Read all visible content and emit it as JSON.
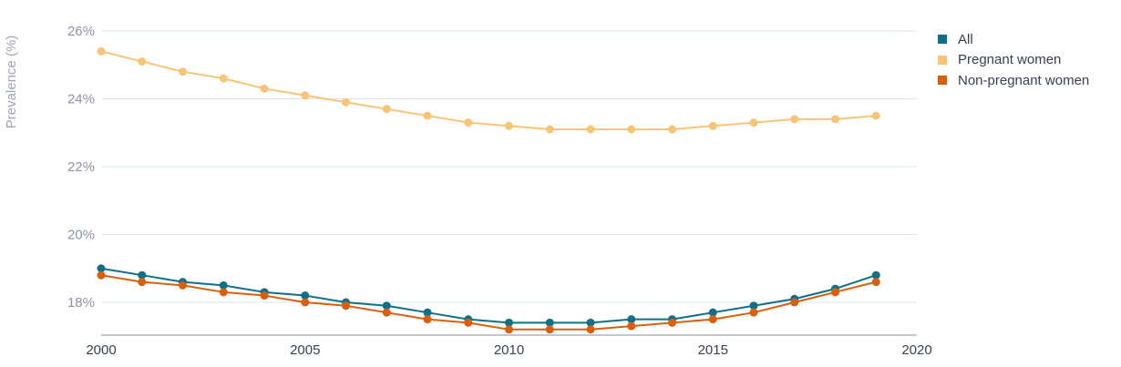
{
  "chart_data": {
    "type": "line",
    "title": "",
    "xlabel": "",
    "ylabel": "Prevalence (%)",
    "x_ticks": [
      "2000",
      "2005",
      "2010",
      "2015",
      "2020"
    ],
    "y_ticks": [
      "18%",
      "20%",
      "22%",
      "24%",
      "26%"
    ],
    "xlim": [
      2000,
      2020
    ],
    "ylim": [
      17,
      26
    ],
    "grid": true,
    "legend_position": "top-right",
    "x": [
      2000,
      2001,
      2002,
      2003,
      2004,
      2005,
      2006,
      2007,
      2008,
      2009,
      2010,
      2011,
      2012,
      2013,
      2014,
      2015,
      2016,
      2017,
      2018,
      2019
    ],
    "series": [
      {
        "name": "All",
        "color": "#0e7088",
        "values": [
          19.0,
          18.8,
          18.6,
          18.5,
          18.3,
          18.2,
          18.0,
          17.9,
          17.7,
          17.5,
          17.4,
          17.4,
          17.4,
          17.5,
          17.5,
          17.7,
          17.9,
          18.1,
          18.4,
          18.8
        ]
      },
      {
        "name": "Pregnant women",
        "color": "#f8c477",
        "values": [
          25.4,
          25.1,
          24.8,
          24.6,
          24.3,
          24.1,
          23.9,
          23.7,
          23.5,
          23.3,
          23.2,
          23.1,
          23.1,
          23.1,
          23.1,
          23.2,
          23.3,
          23.4,
          23.4,
          23.5
        ]
      },
      {
        "name": "Non-pregnant women",
        "color": "#d95f0e",
        "values": [
          18.8,
          18.6,
          18.5,
          18.3,
          18.2,
          18.0,
          17.9,
          17.7,
          17.5,
          17.4,
          17.2,
          17.2,
          17.2,
          17.3,
          17.4,
          17.5,
          17.7,
          18.0,
          18.3,
          18.6
        ]
      }
    ]
  },
  "colors": {
    "gridline": "#dbe9ea",
    "axis": "#8a93a3"
  }
}
